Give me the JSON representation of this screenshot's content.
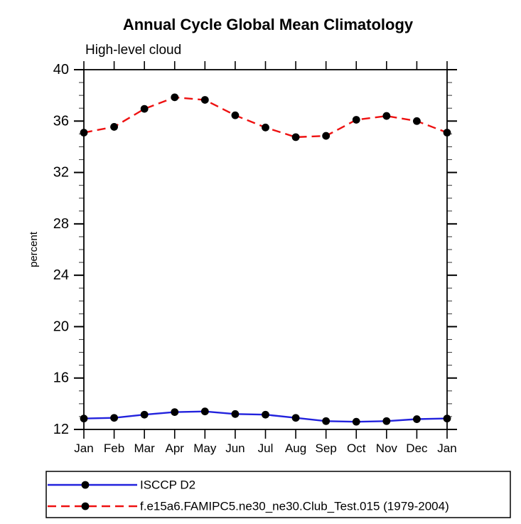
{
  "page": {
    "background": "#ffffff",
    "axis_color": "#000000"
  },
  "chart_data": {
    "type": "line",
    "title": "Annual Cycle Global Mean Climatology",
    "subtitle": "High-level cloud",
    "xlabel": "",
    "ylabel": "percent",
    "ylim": [
      12,
      40
    ],
    "ytick_major_step": 4,
    "ytick_minor_step": 1,
    "ytick_major_labels": [
      "12",
      "16",
      "20",
      "24",
      "28",
      "32",
      "36",
      "40"
    ],
    "categories": [
      "Jan",
      "Feb",
      "Mar",
      "Apr",
      "May",
      "Jun",
      "Jul",
      "Aug",
      "Sep",
      "Oct",
      "Nov",
      "Dec",
      "Jan"
    ],
    "grid": false,
    "frame": "box-with-outward-ticks",
    "legend_position": "bottom-left-boxed",
    "series": [
      {
        "name": "ISCCP D2",
        "color": "#2222dd",
        "line_style": "solid",
        "marker": "filled-circle",
        "marker_color": "#000000",
        "values": [
          12.85,
          12.9,
          13.15,
          13.35,
          13.4,
          13.2,
          13.15,
          12.9,
          12.65,
          12.6,
          12.65,
          12.8,
          12.85
        ]
      },
      {
        "name": "f.e15a6.FAMIPC5.ne30_ne30.Club_Test.015 (1979-2004)",
        "color": "#ee1111",
        "line_style": "dashed",
        "marker": "filled-circle",
        "marker_color": "#000000",
        "values": [
          35.1,
          35.55,
          36.95,
          37.85,
          37.65,
          36.45,
          35.5,
          34.75,
          34.85,
          36.1,
          36.4,
          36.0,
          35.1
        ]
      }
    ]
  },
  "legend": {
    "items": [
      {
        "label": "ISCCP D2"
      },
      {
        "label": "f.e15a6.FAMIPC5.ne30_ne30.Club_Test.015 (1979-2004)"
      }
    ]
  }
}
